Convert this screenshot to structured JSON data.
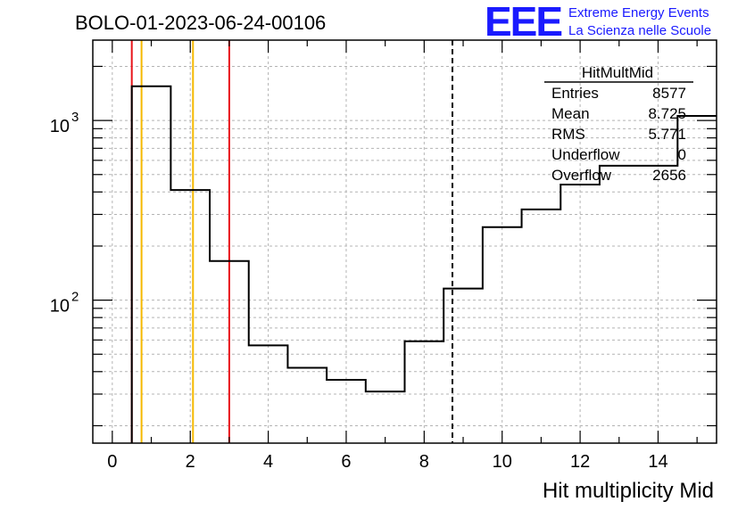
{
  "chart_data": {
    "type": "histogram",
    "title": "BOLO-01-2023-06-24-00106",
    "xlabel": "Hit multiplicity Mid",
    "ylabel": "",
    "xlim": [
      -0.5,
      15.5
    ],
    "ylim": [
      16,
      2800
    ],
    "yscale": "log",
    "grid": true,
    "x_ticks": [
      0,
      2,
      4,
      6,
      8,
      10,
      12,
      14
    ],
    "y_tick_labels": [
      {
        "value": 100,
        "base": "10",
        "exp": "2"
      },
      {
        "value": 1000,
        "base": "10",
        "exp": "3"
      }
    ],
    "bins": [
      {
        "low": 0.5,
        "high": 1.5,
        "value": 1550
      },
      {
        "low": 1.5,
        "high": 2.5,
        "value": 410
      },
      {
        "low": 2.5,
        "high": 3.5,
        "value": 165
      },
      {
        "low": 3.5,
        "high": 4.5,
        "value": 56
      },
      {
        "low": 4.5,
        "high": 5.5,
        "value": 42
      },
      {
        "low": 5.5,
        "high": 6.5,
        "value": 36
      },
      {
        "low": 6.5,
        "high": 7.5,
        "value": 31
      },
      {
        "low": 7.5,
        "high": 8.5,
        "value": 59
      },
      {
        "low": 8.5,
        "high": 9.5,
        "value": 116
      },
      {
        "low": 9.5,
        "high": 10.5,
        "value": 255
      },
      {
        "low": 10.5,
        "high": 11.5,
        "value": 320
      },
      {
        "low": 11.5,
        "high": 12.5,
        "value": 440
      },
      {
        "low": 12.5,
        "high": 13.5,
        "value": 560
      },
      {
        "low": 13.5,
        "high": 14.5,
        "value": 560
      },
      {
        "low": 14.5,
        "high": 15.5,
        "value": 1060
      }
    ],
    "vertical_lines": [
      {
        "x": 0.5,
        "color": "#e8161b",
        "style": "solid"
      },
      {
        "x": 0.75,
        "color": "#f5b800",
        "style": "solid"
      },
      {
        "x": 2.07,
        "color": "#f5b800",
        "style": "solid"
      },
      {
        "x": 3.0,
        "color": "#e8161b",
        "style": "solid"
      },
      {
        "x": 8.725,
        "color": "#000000",
        "style": "dashed"
      }
    ],
    "stats_box": {
      "title": "HitMultMid",
      "rows": [
        {
          "label": "Entries",
          "value": "8577"
        },
        {
          "label": "Mean",
          "value": "8.725"
        },
        {
          "label": "RMS",
          "value": "5.771"
        },
        {
          "label": "Underflow",
          "value": "0"
        },
        {
          "label": "Overflow",
          "value": "2656"
        }
      ]
    }
  },
  "logo": {
    "mark": "EEE",
    "line1": "Extreme Energy Events",
    "line2": "La Scienza nelle Scuole"
  },
  "colors": {
    "logo": "#1a1aff",
    "grid": "#b4b4b4"
  }
}
